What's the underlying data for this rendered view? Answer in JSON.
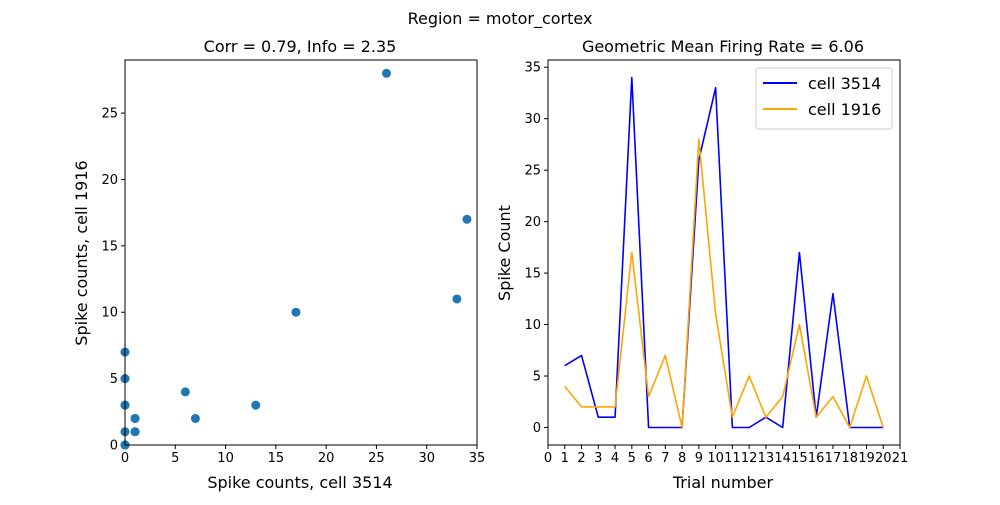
{
  "figure": {
    "suptitle": "Region = motor_cortex"
  },
  "chart_data": [
    {
      "type": "scatter",
      "title": "Corr = 0.79, Info = 2.35",
      "xlabel": "Spike counts, cell 3514",
      "ylabel": "Spike counts, cell 1916",
      "xlim": [
        0,
        35
      ],
      "ylim": [
        0,
        29
      ],
      "xticks": [
        "0",
        "5",
        "10",
        "15",
        "20",
        "25",
        "30",
        "35"
      ],
      "yticks": [
        "0",
        "5",
        "10",
        "15",
        "20",
        "25"
      ],
      "grid": false,
      "marker_color": "#1f77b4",
      "points": [
        {
          "x": 6,
          "y": 4
        },
        {
          "x": 7,
          "y": 2
        },
        {
          "x": 1,
          "y": 2
        },
        {
          "x": 1,
          "y": 2
        },
        {
          "x": 34,
          "y": 17
        },
        {
          "x": 0,
          "y": 3
        },
        {
          "x": 0,
          "y": 7
        },
        {
          "x": 0,
          "y": 0
        },
        {
          "x": 26,
          "y": 28
        },
        {
          "x": 33,
          "y": 11
        },
        {
          "x": 0,
          "y": 1
        },
        {
          "x": 0,
          "y": 5
        },
        {
          "x": 1,
          "y": 1
        },
        {
          "x": 0,
          "y": 3
        },
        {
          "x": 17,
          "y": 10
        },
        {
          "x": 1,
          "y": 1
        },
        {
          "x": 13,
          "y": 3
        },
        {
          "x": 0,
          "y": 0
        },
        {
          "x": 0,
          "y": 5
        },
        {
          "x": 0,
          "y": 0
        }
      ]
    },
    {
      "type": "line",
      "title": "Geometric Mean Firing Rate = 6.06",
      "xlabel": "Trial number",
      "ylabel": "Spike Count",
      "xlim": [
        0,
        21
      ],
      "ylim": [
        -1.7,
        35.7
      ],
      "xticks": [
        "0",
        "1",
        "2",
        "3",
        "4",
        "5",
        "6",
        "7",
        "8",
        "9",
        "10",
        "11",
        "12",
        "13",
        "14",
        "15",
        "16",
        "17",
        "18",
        "19",
        "20",
        "21"
      ],
      "yticks": [
        "0",
        "5",
        "10",
        "15",
        "20",
        "25",
        "30",
        "35"
      ],
      "grid": false,
      "legend_position": "top-right",
      "x": [
        1,
        2,
        3,
        4,
        5,
        6,
        7,
        8,
        9,
        10,
        11,
        12,
        13,
        14,
        15,
        16,
        17,
        18,
        19,
        20
      ],
      "series": [
        {
          "name": "cell 3514",
          "color": "#0000ff",
          "values": [
            6,
            7,
            1,
            1,
            34,
            0,
            0,
            0,
            26,
            33,
            0,
            0,
            1,
            0,
            17,
            1,
            13,
            0,
            0,
            0
          ]
        },
        {
          "name": "cell 1916",
          "color": "#ffa500",
          "values": [
            4,
            2,
            2,
            2,
            17,
            3,
            7,
            0,
            28,
            11,
            1,
            5,
            1,
            3,
            10,
            1,
            3,
            0,
            5,
            0
          ]
        }
      ]
    }
  ]
}
